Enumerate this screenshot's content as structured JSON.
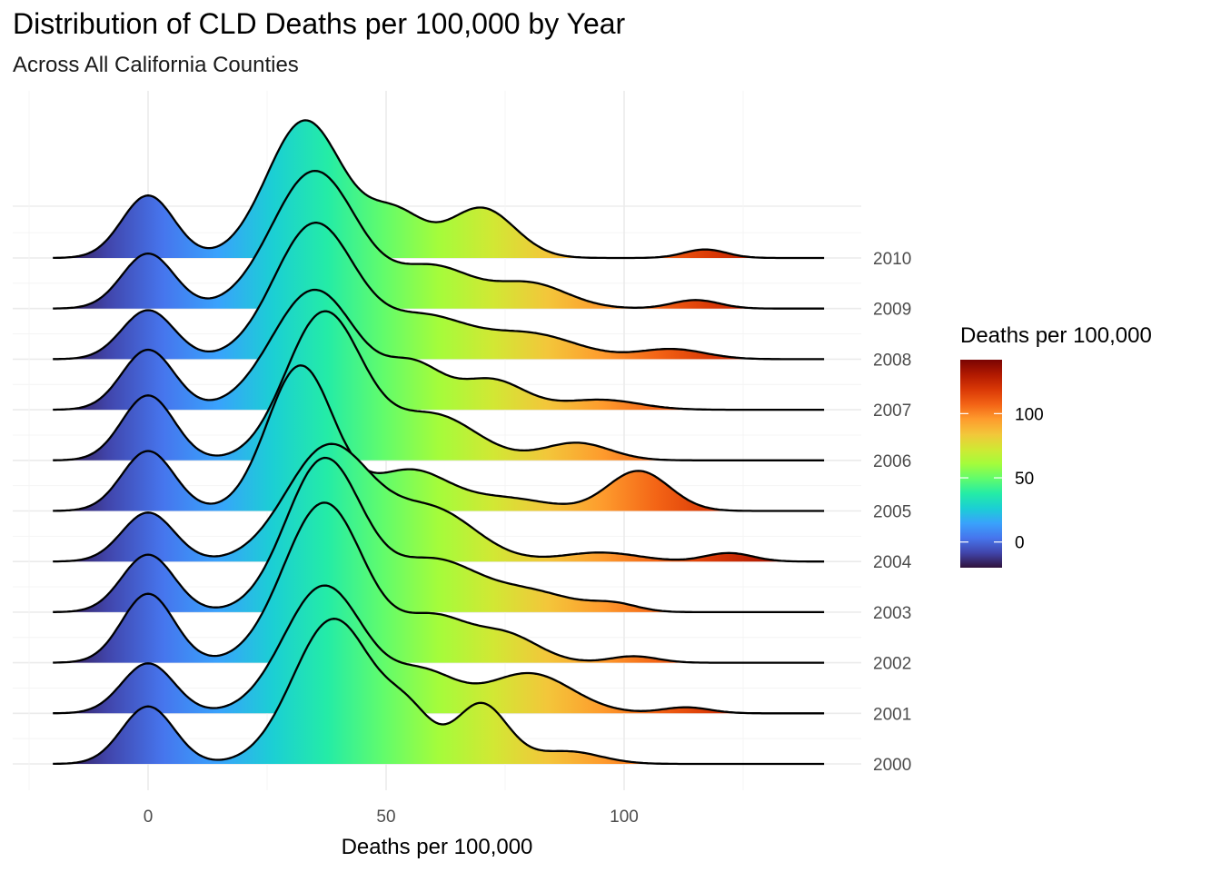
{
  "chart_data": {
    "type": "ridgeline",
    "title": "Distribution of CLD Deaths per 100,000 by Year",
    "subtitle": "Across All California Counties",
    "xlabel": "Deaths per 100,000",
    "ylabel": "",
    "xlim": [
      -20,
      142
    ],
    "x_ticks": [
      0,
      50,
      100
    ],
    "x_tick_labels": [
      "0",
      "50",
      "100"
    ],
    "grid": true,
    "fill": "gradient by Deaths per 100,000 (turbo palette)",
    "legend": {
      "title": "Deaths per 100,000",
      "placement": "right",
      "range": [
        -20,
        142
      ],
      "ticks": [
        0,
        50,
        100
      ],
      "tick_labels": [
        "0",
        "50",
        "100"
      ]
    },
    "colors": [
      "#30123b",
      "#4145ab",
      "#4675ed",
      "#39a2fc",
      "#1bcfd4",
      "#24eca6",
      "#61fc6c",
      "#a4fc3b",
      "#d1e834",
      "#f3c63a",
      "#fe9b2d",
      "#f36315",
      "#d93806",
      "#b11901",
      "#7a0403"
    ],
    "years": [
      "2000",
      "2001",
      "2002",
      "2003",
      "2004",
      "2005",
      "2006",
      "2007",
      "2008",
      "2009",
      "2010"
    ],
    "series": [
      {
        "name": "2000",
        "peaks": [
          {
            "mu": 0,
            "sd": 5.5,
            "h": 1.15
          },
          {
            "mu": 39,
            "sd": 8.5,
            "h": 2.9
          },
          {
            "mu": 55,
            "sd": 5,
            "h": 0.8
          },
          {
            "mu": 70,
            "sd": 5.5,
            "h": 1.2
          },
          {
            "mu": 88,
            "sd": 7,
            "h": 0.25
          }
        ]
      },
      {
        "name": "2001",
        "peaks": [
          {
            "mu": 0,
            "sd": 5.5,
            "h": 1.0
          },
          {
            "mu": 37,
            "sd": 8.5,
            "h": 2.55
          },
          {
            "mu": 58,
            "sd": 7,
            "h": 0.75
          },
          {
            "mu": 80,
            "sd": 9,
            "h": 0.8
          },
          {
            "mu": 113,
            "sd": 5,
            "h": 0.12
          }
        ]
      },
      {
        "name": "2002",
        "peaks": [
          {
            "mu": 0,
            "sd": 5.5,
            "h": 1.38
          },
          {
            "mu": 37,
            "sd": 8.5,
            "h": 3.2
          },
          {
            "mu": 60,
            "sd": 7,
            "h": 0.85
          },
          {
            "mu": 75,
            "sd": 7,
            "h": 0.55
          },
          {
            "mu": 102,
            "sd": 5,
            "h": 0.13
          }
        ]
      },
      {
        "name": "2003",
        "peaks": [
          {
            "mu": 0,
            "sd": 5.5,
            "h": 1.15
          },
          {
            "mu": 37,
            "sd": 8,
            "h": 3.05
          },
          {
            "mu": 60,
            "sd": 9,
            "h": 1.0
          },
          {
            "mu": 80,
            "sd": 9,
            "h": 0.4
          },
          {
            "mu": 98,
            "sd": 5,
            "h": 0.15
          }
        ]
      },
      {
        "name": "2004",
        "peaks": [
          {
            "mu": 0,
            "sd": 5.5,
            "h": 0.98
          },
          {
            "mu": 38,
            "sd": 9,
            "h": 2.3
          },
          {
            "mu": 60,
            "sd": 9,
            "h": 1.0
          },
          {
            "mu": 95,
            "sd": 8,
            "h": 0.18
          },
          {
            "mu": 122,
            "sd": 5,
            "h": 0.17
          }
        ]
      },
      {
        "name": "2005",
        "peaks": [
          {
            "mu": 0,
            "sd": 5.5,
            "h": 1.2
          },
          {
            "mu": 32,
            "sd": 7,
            "h": 2.9
          },
          {
            "mu": 55,
            "sd": 8,
            "h": 0.8
          },
          {
            "mu": 75,
            "sd": 9,
            "h": 0.25
          },
          {
            "mu": 103,
            "sd": 6.5,
            "h": 0.8
          }
        ]
      },
      {
        "name": "2006",
        "peaks": [
          {
            "mu": 0,
            "sd": 5.5,
            "h": 1.3
          },
          {
            "mu": 37,
            "sd": 8,
            "h": 2.95
          },
          {
            "mu": 60,
            "sd": 9,
            "h": 0.9
          },
          {
            "mu": 90,
            "sd": 7,
            "h": 0.35
          }
        ]
      },
      {
        "name": "2007",
        "peaks": [
          {
            "mu": 0,
            "sd": 5.5,
            "h": 1.2
          },
          {
            "mu": 35,
            "sd": 9,
            "h": 2.4
          },
          {
            "mu": 56,
            "sd": 6,
            "h": 0.8
          },
          {
            "mu": 72,
            "sd": 7,
            "h": 0.6
          },
          {
            "mu": 95,
            "sd": 8,
            "h": 0.2
          }
        ]
      },
      {
        "name": "2008",
        "peaks": [
          {
            "mu": 0,
            "sd": 5.5,
            "h": 0.98
          },
          {
            "mu": 35,
            "sd": 8.5,
            "h": 2.7
          },
          {
            "mu": 58,
            "sd": 9,
            "h": 0.8
          },
          {
            "mu": 80,
            "sd": 10,
            "h": 0.5
          },
          {
            "mu": 110,
            "sd": 7,
            "h": 0.2
          }
        ]
      },
      {
        "name": "2009",
        "peaks": [
          {
            "mu": 0,
            "sd": 5.5,
            "h": 1.1
          },
          {
            "mu": 35,
            "sd": 9,
            "h": 2.75
          },
          {
            "mu": 60,
            "sd": 8,
            "h": 0.8
          },
          {
            "mu": 80,
            "sd": 8,
            "h": 0.5
          },
          {
            "mu": 115,
            "sd": 5,
            "h": 0.17
          }
        ]
      },
      {
        "name": "2010",
        "peaks": [
          {
            "mu": 0,
            "sd": 5.5,
            "h": 1.25
          },
          {
            "mu": 33,
            "sd": 8,
            "h": 2.75
          },
          {
            "mu": 52,
            "sd": 6,
            "h": 0.85
          },
          {
            "mu": 70,
            "sd": 7,
            "h": 1.0
          },
          {
            "mu": 117,
            "sd": 4.5,
            "h": 0.17
          }
        ]
      }
    ]
  }
}
